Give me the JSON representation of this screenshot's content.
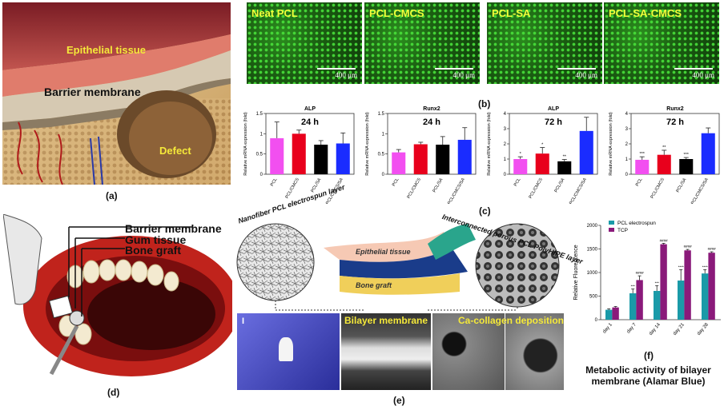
{
  "panel_a": {
    "epithelial": "Epithelial tissue",
    "barrier": "Barrier membrane",
    "defect": "Defect",
    "label": "(a)"
  },
  "panel_b": {
    "label": "(b)",
    "images": [
      {
        "title": "Neat PCL",
        "scale": "400 μm"
      },
      {
        "title": "PCL-CMCS",
        "scale": "400 μm"
      },
      {
        "title": "PCL-SA",
        "scale": "400 μm"
      },
      {
        "title": "PCL-SA-CMCS",
        "scale": "400 μm"
      }
    ]
  },
  "panel_c": {
    "label": "(c)"
  },
  "panel_d": {
    "barrier": "Barrier membrane",
    "gum": "Gum tissue",
    "bone": "Bone graft",
    "label": "(d)"
  },
  "panel_e": {
    "label": "(e)",
    "nanofiber": "Nanofiber PCL electrospun layer",
    "porous": "Interconnected porous PCL PolyHIPE layer",
    "epithelial": "Epithelial tissue",
    "bone": "Bone graft",
    "photo_tag": "I",
    "bilayer": "Bilayer membrane",
    "ca": "Ca-collagen deposition"
  },
  "panel_f": {
    "label": "(f)",
    "caption_line1": "Metabolic activity of bilayer",
    "caption_line2": "membrane (Alamar Blue)"
  },
  "colors": {
    "pcl": "#f24ff0",
    "cmcs": "#e8001c",
    "sa": "#000000",
    "cmcssa": "#1a2cff",
    "electrospun": "#1a9aa8",
    "tcp": "#8a1a7a"
  },
  "chart_data": [
    {
      "type": "bar",
      "title": "ALP",
      "annotation": "24 h",
      "ylabel": "Relative mRNA expression (fold)",
      "ylim": [
        0,
        1.5
      ],
      "yticks": [
        0,
        0.5,
        1,
        1.5
      ],
      "categories": [
        "PCL",
        "PCL/CMCS",
        "PCL/SA",
        "PCL/CMCS/SA"
      ],
      "values": [
        0.89,
        1.0,
        0.73,
        0.76
      ],
      "errors": [
        0.4,
        0.09,
        0.1,
        0.26
      ],
      "sig": [
        "",
        "",
        "",
        ""
      ]
    },
    {
      "type": "bar",
      "title": "Runx2",
      "annotation": "24 h",
      "ylabel": "Relative mRNA expression (fold)",
      "ylim": [
        0,
        1.5
      ],
      "yticks": [
        0,
        0.5,
        1,
        1.5
      ],
      "categories": [
        "PCL",
        "PCL/CMCS",
        "PCL/SA",
        "PCL/CMCS/SA"
      ],
      "values": [
        0.54,
        0.74,
        0.73,
        0.85
      ],
      "errors": [
        0.07,
        0.05,
        0.2,
        0.3
      ],
      "sig": [
        "",
        "",
        "",
        ""
      ]
    },
    {
      "type": "bar",
      "title": "ALP",
      "annotation": "72 h",
      "ylabel": "Relative mRNA expression (fold)",
      "ylim": [
        0,
        4
      ],
      "yticks": [
        0,
        1,
        2,
        3,
        4
      ],
      "categories": [
        "PCL",
        "PCL/CMCS",
        "PCL/SA",
        "PCL/CMCS/SA"
      ],
      "values": [
        1.0,
        1.36,
        0.85,
        2.85
      ],
      "errors": [
        0.15,
        0.4,
        0.12,
        0.9
      ],
      "sig": [
        "*",
        "*",
        "**",
        ""
      ]
    },
    {
      "type": "bar",
      "title": "Runx2",
      "annotation": "72 h",
      "ylabel": "Relative mRNA expression (fold)",
      "ylim": [
        0,
        4
      ],
      "yticks": [
        0,
        1,
        2,
        3,
        4
      ],
      "categories": [
        "PCL",
        "PCL/CMCS",
        "PCL/SA",
        "PCL/CMCS/SA"
      ],
      "values": [
        0.95,
        1.28,
        1.0,
        2.7
      ],
      "errors": [
        0.2,
        0.3,
        0.1,
        0.35
      ],
      "sig": [
        "***",
        "**",
        "***",
        ""
      ]
    },
    {
      "type": "bar",
      "ylabel": "Relative Fluorescence",
      "ylim": [
        0,
        2000
      ],
      "yticks": [
        0,
        500,
        1000,
        1500,
        2000
      ],
      "categories": [
        "day 1",
        "day 7",
        "day 14",
        "day 21",
        "day 28"
      ],
      "series": [
        {
          "name": "PCL electrospun",
          "values": [
            210,
            560,
            610,
            830,
            980
          ],
          "errors": [
            20,
            90,
            110,
            230,
            80
          ],
          "sig": [
            "",
            "***",
            "***",
            "****",
            "****"
          ]
        },
        {
          "name": "TCP",
          "values": [
            260,
            840,
            1600,
            1470,
            1420
          ],
          "errors": [
            20,
            90,
            20,
            20,
            20
          ],
          "sig": [
            "",
            "####",
            "####",
            "####",
            "####"
          ]
        }
      ]
    }
  ]
}
